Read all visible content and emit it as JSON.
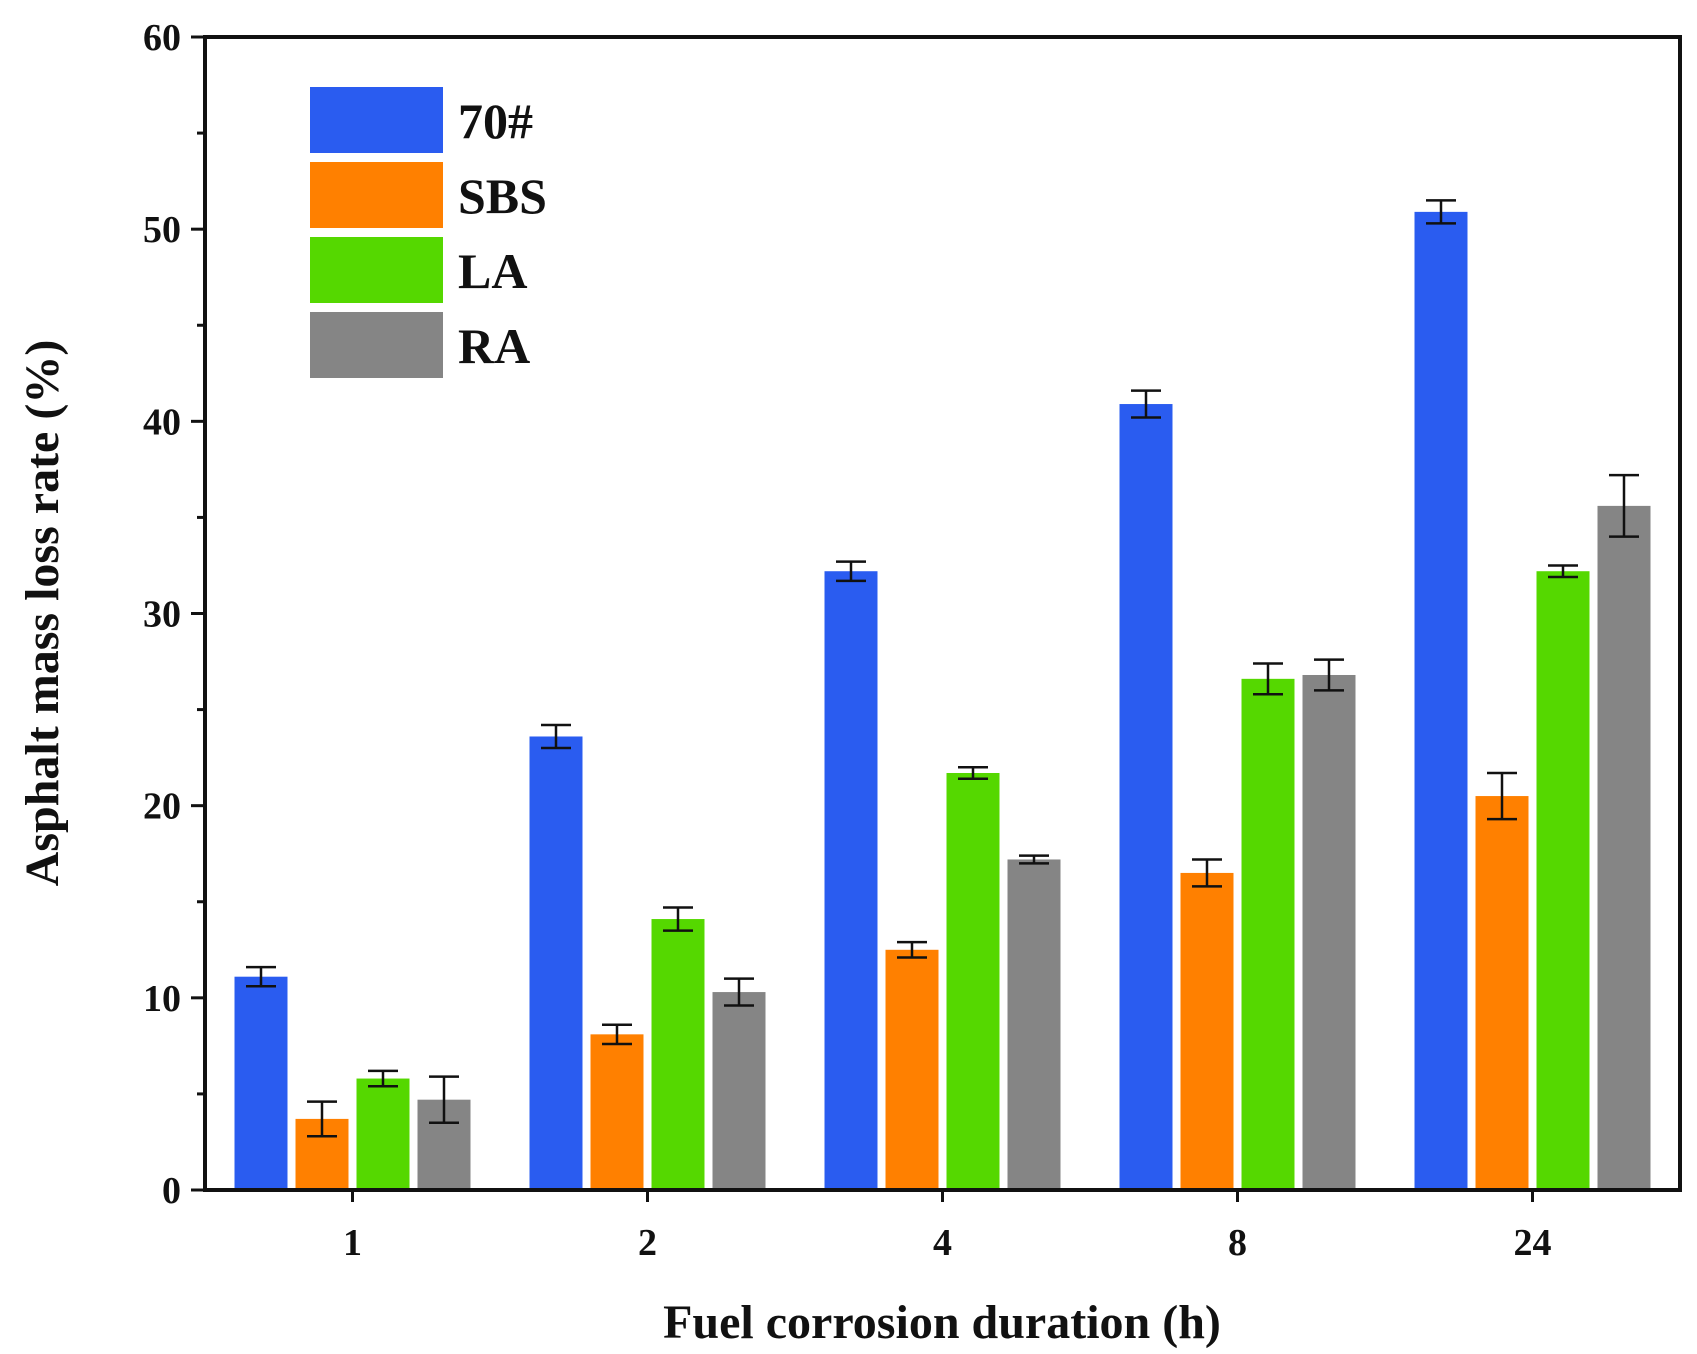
{
  "chart_data": {
    "type": "bar",
    "title": "",
    "xlabel": "Fuel corrosion duration (h)",
    "ylabel": "Asphalt mass loss rate (%)",
    "ylim": [
      0,
      60
    ],
    "yticks": [
      0,
      10,
      20,
      30,
      40,
      50,
      60
    ],
    "grid": false,
    "legend_position": "top-left",
    "categories": [
      "1",
      "2",
      "4",
      "8",
      "24"
    ],
    "series": [
      {
        "name": "70#",
        "color": "#2a5cf0",
        "values": [
          11.1,
          23.6,
          32.2,
          40.9,
          50.9
        ],
        "errors": [
          0.5,
          0.6,
          0.5,
          0.7,
          0.6
        ]
      },
      {
        "name": "SBS",
        "color": "#ff8000",
        "values": [
          3.7,
          8.1,
          12.5,
          16.5,
          20.5
        ],
        "errors": [
          0.9,
          0.5,
          0.4,
          0.7,
          1.2
        ]
      },
      {
        "name": "LA",
        "color": "#55d800",
        "values": [
          5.8,
          14.1,
          21.7,
          26.6,
          32.2
        ],
        "errors": [
          0.4,
          0.6,
          0.3,
          0.8,
          0.3
        ]
      },
      {
        "name": "RA",
        "color": "#858585",
        "values": [
          4.7,
          10.3,
          17.2,
          26.8,
          35.6
        ],
        "errors": [
          1.2,
          0.7,
          0.2,
          0.8,
          1.6
        ]
      }
    ]
  }
}
